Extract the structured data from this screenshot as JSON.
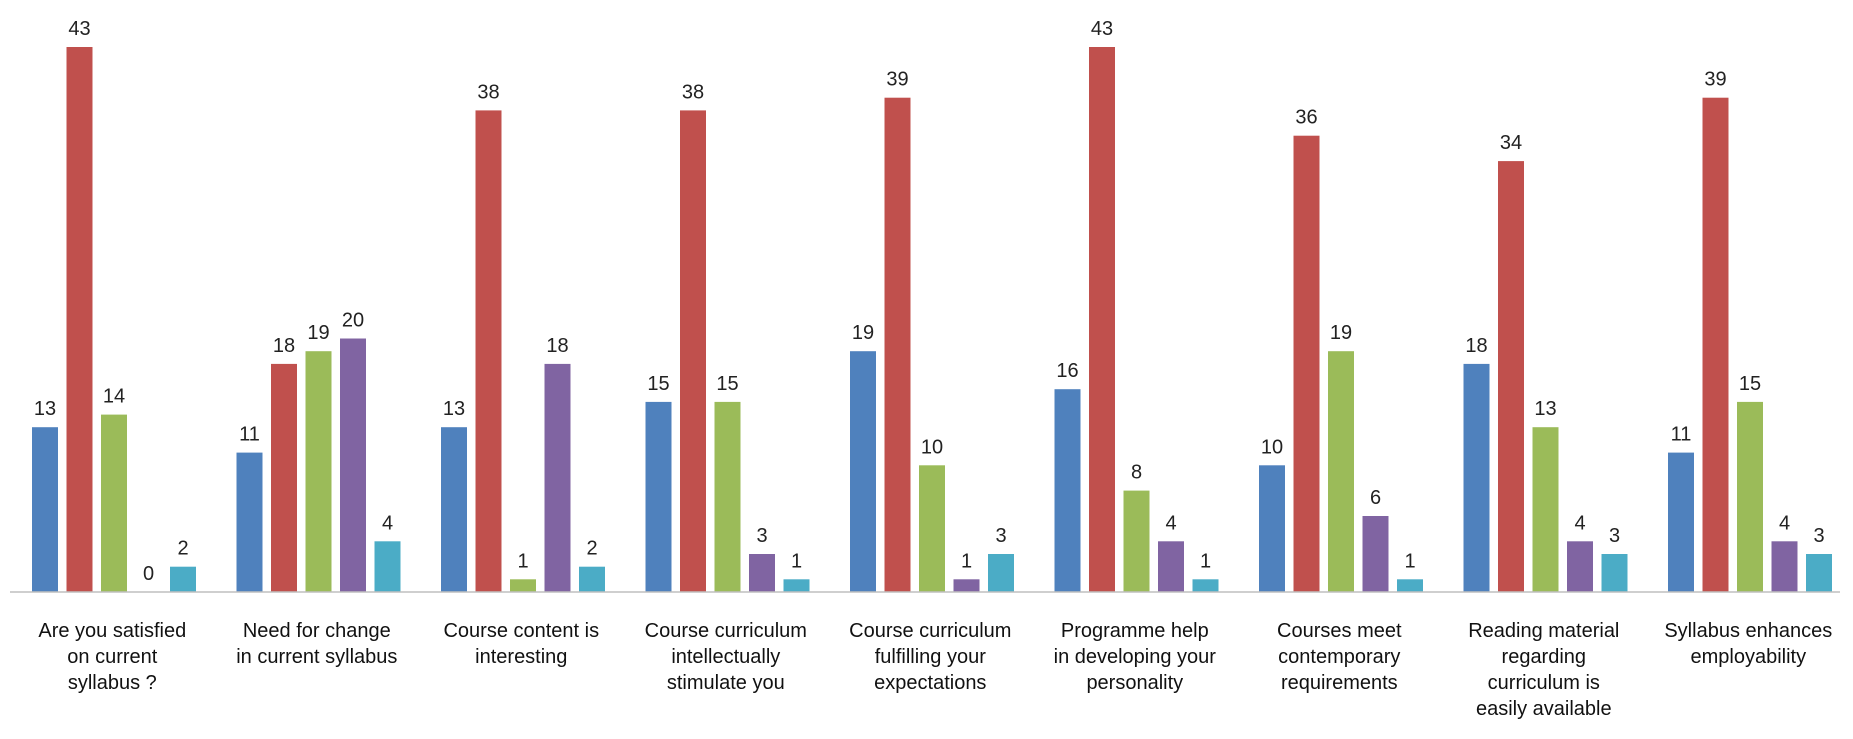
{
  "chart_data": {
    "type": "bar",
    "title": "",
    "xlabel": "",
    "ylabel": "",
    "ylim": [
      0,
      43
    ],
    "grid": false,
    "legend": "none",
    "categories": [
      [
        "Are you satisfied",
        "on current",
        "syllabus ?"
      ],
      [
        "Need for change",
        "in current syllabus"
      ],
      [
        "Course content is",
        "interesting"
      ],
      [
        "Course curriculum",
        "intellectually",
        "stimulate you"
      ],
      [
        "Course curriculum",
        "fulfilling your",
        "expectations"
      ],
      [
        "Programme help",
        "in developing your",
        "personality"
      ],
      [
        "Courses meet",
        "contemporary",
        "requirements"
      ],
      [
        "Reading material",
        "regarding",
        "curriculum is",
        "easily available"
      ],
      [
        "Syllabus enhances",
        "employability"
      ]
    ],
    "series": [
      {
        "color": "#4F81BD",
        "values": [
          13,
          11,
          13,
          15,
          19,
          16,
          10,
          18,
          11
        ]
      },
      {
        "color": "#C0504D",
        "values": [
          43,
          18,
          38,
          38,
          39,
          43,
          36,
          34,
          39
        ]
      },
      {
        "color": "#9BBB59",
        "values": [
          14,
          19,
          1,
          15,
          10,
          8,
          19,
          13,
          15
        ]
      },
      {
        "color": "#8064A2",
        "values": [
          0,
          20,
          18,
          3,
          1,
          4,
          6,
          4,
          4
        ]
      },
      {
        "color": "#4BACC6",
        "values": [
          2,
          4,
          2,
          1,
          3,
          1,
          1,
          3,
          3
        ]
      }
    ]
  }
}
